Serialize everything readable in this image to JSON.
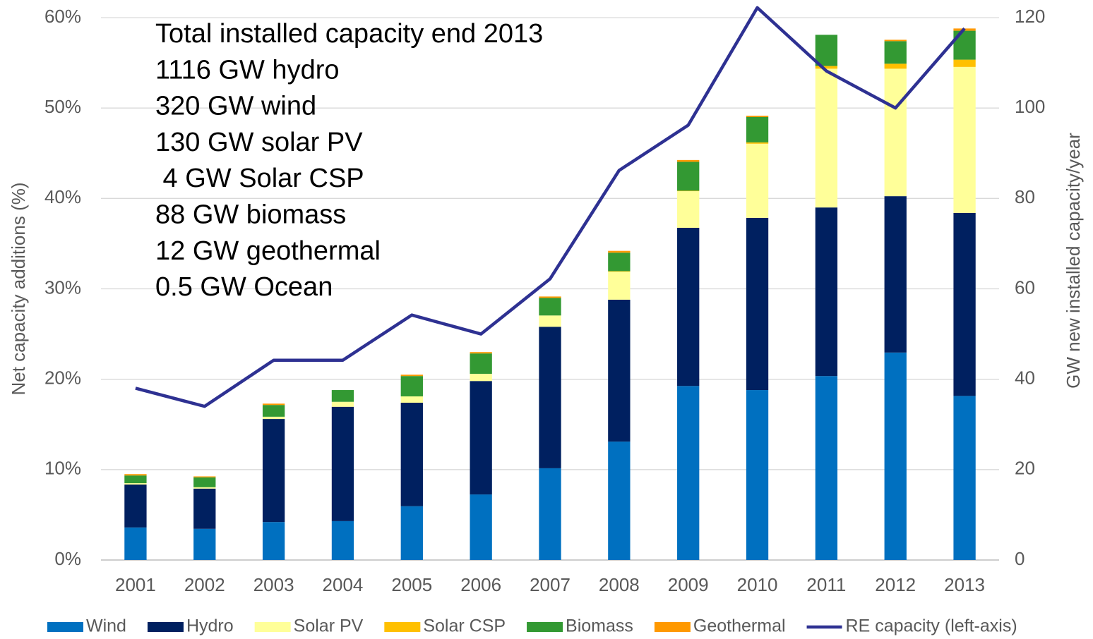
{
  "chart_data": {
    "type": "bar",
    "stacked": true,
    "categories": [
      "2001",
      "2002",
      "2003",
      "2004",
      "2005",
      "2006",
      "2007",
      "2008",
      "2009",
      "2010",
      "2011",
      "2012",
      "2013"
    ],
    "y_label": "Net capacity additions (%)",
    "y2_label": "GW new installed capacity/year",
    "ylim": [
      0,
      60
    ],
    "yticks": [
      {
        "value": 0,
        "label": "0%"
      },
      {
        "value": 10,
        "label": "10%"
      },
      {
        "value": 20,
        "label": "20%"
      },
      {
        "value": 30,
        "label": "30%"
      },
      {
        "value": 40,
        "label": "40%"
      },
      {
        "value": 50,
        "label": "50%"
      },
      {
        "value": 60,
        "label": "60%"
      }
    ],
    "y2lim": [
      0,
      120
    ],
    "y2ticks": [
      0,
      20,
      40,
      60,
      80,
      100,
      120
    ],
    "grid": true,
    "legend": "bottom",
    "annotations": [
      "Total installed capacity end 2013",
      "1116 GW hydro",
      "320 GW wind",
      "130 GW solar PV",
      " 4 GW Solar CSP",
      "88 GW biomass",
      "12 GW geothermal",
      "0.5 GW Ocean"
    ],
    "series": [
      {
        "name": "Wind",
        "color": "#0070c0",
        "axis": "y2",
        "values": [
          7.2,
          6.9,
          8.4,
          8.6,
          11.9,
          14.5,
          20.3,
          26.2,
          38.5,
          37.6,
          40.7,
          45.9,
          36.3
        ]
      },
      {
        "name": "Hydro",
        "color": "#002060",
        "axis": "y2",
        "values": [
          9.5,
          8.9,
          22.8,
          25.3,
          22.9,
          25.1,
          31.3,
          31.4,
          35.0,
          38.1,
          37.3,
          34.6,
          40.5
        ]
      },
      {
        "name": "Solar PV",
        "color": "#ffff99",
        "axis": "y2",
        "values": [
          0.3,
          0.3,
          0.5,
          1.1,
          1.4,
          1.6,
          2.5,
          6.2,
          8.1,
          16.4,
          30.7,
          28.2,
          32.3
        ]
      },
      {
        "name": "Solar CSP",
        "color": "#ffc000",
        "axis": "y2",
        "values": [
          0,
          0,
          0,
          0,
          0,
          0,
          0,
          0.1,
          0.1,
          0.3,
          0.6,
          1.1,
          1.6
        ]
      },
      {
        "name": "Biomass",
        "color": "#339933",
        "axis": "y2",
        "values": [
          1.7,
          2.2,
          2.6,
          2.6,
          4.5,
          4.5,
          3.9,
          4.1,
          6.4,
          5.6,
          6.9,
          5.0,
          6.4
        ]
      },
      {
        "name": "Geothermal",
        "color": "#ff9900",
        "axis": "y2",
        "values": [
          0.3,
          0.2,
          0.3,
          0,
          0.3,
          0.3,
          0.3,
          0.4,
          0.4,
          0.3,
          0,
          0.3,
          0.5
        ]
      },
      {
        "name": "RE capacity (left-axis)",
        "color": "#2e3192",
        "axis": "y",
        "type": "line",
        "values": [
          19.0,
          17.0,
          22.1,
          22.1,
          27.1,
          25.0,
          31.1,
          43.1,
          48.1,
          61.1,
          54.1,
          50.0,
          58.8
        ]
      }
    ]
  }
}
